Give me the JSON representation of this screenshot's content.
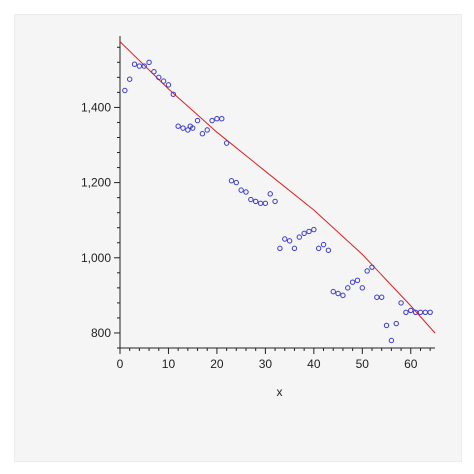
{
  "chart_data": {
    "type": "scatter",
    "xlabel": "x",
    "ylabel": "",
    "xlim": [
      0,
      65
    ],
    "ylim": [
      760,
      1590
    ],
    "x_ticks": [
      0,
      10,
      20,
      30,
      40,
      50,
      60
    ],
    "x_tick_labels": [
      "0",
      "10",
      "20",
      "30",
      "40",
      "50",
      "60"
    ],
    "y_ticks": [
      800,
      1000,
      1200,
      1400
    ],
    "y_tick_labels": [
      "800",
      "1,000",
      "1,200",
      "1,400"
    ],
    "grid": false,
    "colors": {
      "points": "#3a3acc",
      "fit_line": "#e02020",
      "axes": "#222222"
    },
    "series": [
      {
        "kind": "points",
        "x": [
          1,
          2,
          3,
          4,
          5,
          6,
          7,
          8,
          9,
          10,
          11,
          12,
          13,
          14,
          14.5,
          15,
          16,
          17,
          18,
          19,
          20,
          21,
          22,
          23,
          24,
          25,
          26,
          27,
          28,
          29,
          30,
          31,
          32,
          33,
          34,
          35,
          36,
          37,
          38,
          39,
          40,
          41,
          42,
          43,
          44,
          45,
          46,
          47,
          48,
          49,
          50,
          51,
          52,
          53,
          54,
          55,
          56,
          57,
          58,
          59,
          60,
          61,
          62,
          63,
          64
        ],
        "y": [
          1445,
          1475,
          1515,
          1510,
          1510,
          1520,
          1495,
          1480,
          1470,
          1460,
          1435,
          1350,
          1345,
          1340,
          1350,
          1345,
          1365,
          1330,
          1340,
          1365,
          1370,
          1370,
          1305,
          1205,
          1200,
          1180,
          1175,
          1155,
          1150,
          1145,
          1145,
          1170,
          1150,
          1025,
          1050,
          1045,
          1025,
          1055,
          1065,
          1070,
          1075,
          1025,
          1035,
          1020,
          910,
          905,
          900,
          920,
          935,
          940,
          920,
          965,
          975,
          895,
          895,
          820,
          780,
          825,
          880,
          855,
          860,
          855,
          855,
          855,
          855
        ]
      },
      {
        "kind": "fit_line",
        "x": [
          0,
          10,
          20,
          30,
          40,
          50,
          60,
          65
        ],
        "y": [
          1575,
          1449,
          1334,
          1230,
          1127,
          1009,
          872,
          800
        ]
      }
    ]
  }
}
